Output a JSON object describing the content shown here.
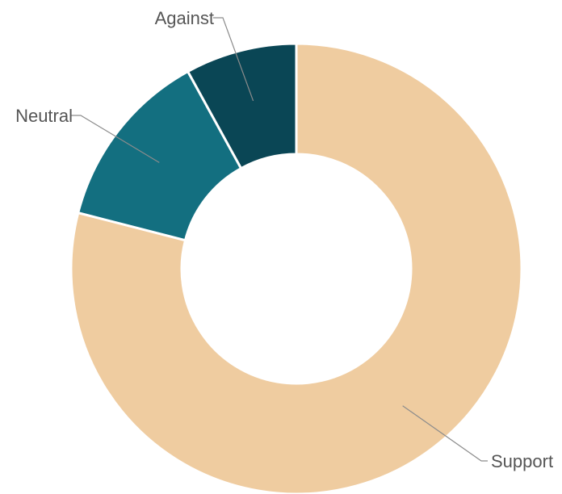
{
  "chart_data": {
    "type": "pie",
    "variant": "donut",
    "title": "",
    "categories": [
      "Support",
      "Neutral",
      "Against"
    ],
    "values": [
      79,
      13,
      8
    ],
    "colors": [
      "#efcca0",
      "#136f80",
      "#0a4655"
    ],
    "legend": "none",
    "labels_outside": true
  }
}
